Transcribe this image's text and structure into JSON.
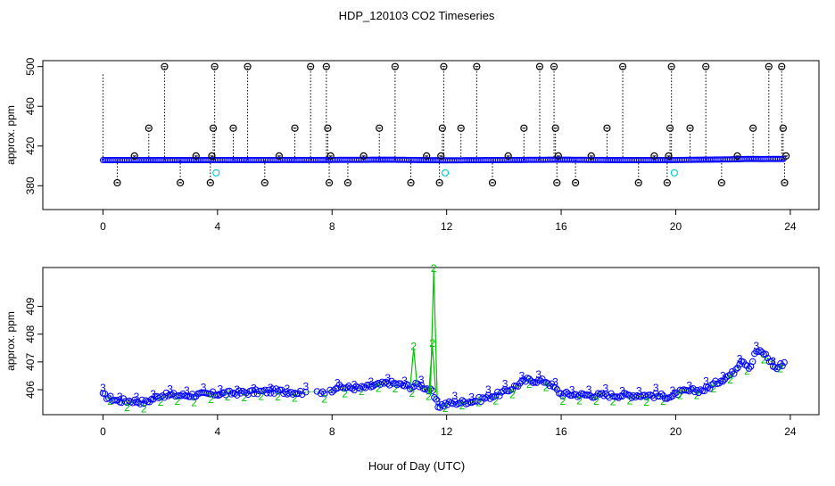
{
  "title": "HDP_120103  CO2 Timeseries",
  "xlabel": "Hour of Day (UTC)",
  "colors": {
    "background": "#ffffff",
    "axis": "#000000",
    "series3": "#0000ff",
    "series2": "#00c000",
    "outlier": "#000000",
    "spike": "#00d0d0"
  },
  "chart_data": [
    {
      "type": "scatter",
      "xlabel": "",
      "ylabel": "approx. ppm",
      "xlim": [
        -2.1,
        25
      ],
      "ylim": [
        356,
        506
      ],
      "xticks": [
        0,
        4,
        8,
        12,
        16,
        20,
        24
      ],
      "yticks": [
        380,
        420,
        460,
        500
      ],
      "series": [
        {
          "marker": "o",
          "color": "#0000ff",
          "base_value": 405.8,
          "x_range": [
            0,
            23.8
          ],
          "values_note_x": [
            0,
            2,
            4,
            6,
            8,
            10,
            12,
            14,
            16,
            18,
            20,
            22,
            22.5,
            23,
            23.8
          ],
          "values_note_y": [
            405.8,
            405.8,
            405.9,
            405.9,
            406.0,
            406.2,
            405.6,
            405.9,
            406.2,
            405.8,
            405.9,
            406.6,
            407.0,
            406.9,
            407.0
          ]
        },
        {
          "marker": "o",
          "color": "#000000",
          "points": [
            [
              0.5,
              383
            ],
            [
              1.1,
              410
            ],
            [
              1.6,
              438
            ],
            [
              2.15,
              500
            ],
            [
              2.7,
              383
            ],
            [
              3.25,
              410
            ],
            [
              3.75,
              383
            ],
            [
              3.8,
              410
            ],
            [
              3.85,
              438
            ],
            [
              3.9,
              500
            ],
            [
              4.55,
              438
            ],
            [
              5.05,
              500
            ],
            [
              5.65,
              383
            ],
            [
              6.15,
              410
            ],
            [
              6.7,
              438
            ],
            [
              7.25,
              500
            ],
            [
              7.8,
              500
            ],
            [
              7.85,
              438
            ],
            [
              7.9,
              383
            ],
            [
              7.95,
              410
            ],
            [
              8.55,
              383
            ],
            [
              9.1,
              410
            ],
            [
              9.65,
              438
            ],
            [
              10.2,
              500
            ],
            [
              10.75,
              383
            ],
            [
              11.3,
              410
            ],
            [
              11.75,
              383
            ],
            [
              11.8,
              410
            ],
            [
              11.85,
              438
            ],
            [
              11.9,
              500
            ],
            [
              12.5,
              438
            ],
            [
              13.05,
              500
            ],
            [
              13.6,
              383
            ],
            [
              14.15,
              410
            ],
            [
              14.7,
              438
            ],
            [
              15.25,
              500
            ],
            [
              15.75,
              500
            ],
            [
              15.8,
              438
            ],
            [
              15.85,
              383
            ],
            [
              15.9,
              410
            ],
            [
              16.5,
              383
            ],
            [
              17.05,
              410
            ],
            [
              17.6,
              438
            ],
            [
              18.15,
              500
            ],
            [
              18.7,
              383
            ],
            [
              19.25,
              410
            ],
            [
              19.7,
              383
            ],
            [
              19.75,
              410
            ],
            [
              19.8,
              438
            ],
            [
              19.85,
              500
            ],
            [
              20.5,
              438
            ],
            [
              21.05,
              500
            ],
            [
              21.6,
              383
            ],
            [
              22.15,
              410
            ],
            [
              22.7,
              438
            ],
            [
              23.25,
              500
            ],
            [
              23.7,
              500
            ],
            [
              23.75,
              438
            ],
            [
              23.8,
              383
            ],
            [
              23.85,
              410
            ]
          ]
        },
        {
          "marker": "o",
          "color": "#00d0d0",
          "points": [
            [
              3.95,
              393
            ],
            [
              11.95,
              393
            ],
            [
              19.95,
              393
            ]
          ]
        }
      ]
    },
    {
      "type": "scatter",
      "xlabel": "Hour of Day (UTC)",
      "ylabel": "approx. ppm",
      "xlim": [
        -2.1,
        25
      ],
      "ylim": [
        405.1,
        410.4
      ],
      "xticks": [
        0,
        4,
        8,
        12,
        16,
        20,
        24
      ],
      "yticks": [
        406,
        407,
        408,
        409
      ],
      "series": [
        {
          "marker": "3",
          "color": "#0000ff",
          "knots_x": [
            0,
            0.5,
            1,
            1.5,
            2,
            3,
            4,
            5,
            6,
            7,
            7.9,
            8.1,
            9,
            10,
            10.8,
            11.0,
            11.3,
            11.5,
            11.7,
            12,
            13,
            14,
            14.8,
            15.5,
            16,
            17,
            18,
            19,
            19.9,
            20.1,
            21,
            21.5,
            22,
            22.3,
            22.6,
            22.8,
            23.1,
            23.5,
            23.8
          ],
          "knots_y": [
            405.8,
            405.6,
            405.6,
            405.55,
            405.8,
            405.8,
            405.85,
            405.9,
            405.95,
            405.9,
            405.9,
            406.1,
            406.05,
            406.25,
            406.1,
            406.2,
            406.05,
            405.9,
            405.4,
            405.5,
            405.6,
            405.9,
            406.35,
            406.3,
            405.85,
            405.8,
            405.8,
            405.8,
            405.75,
            405.9,
            406.0,
            406.3,
            406.6,
            407.1,
            406.8,
            407.4,
            407.3,
            406.75,
            407.0
          ]
        },
        {
          "marker": "2",
          "color": "#00c000",
          "spikes": [
            [
              10.85,
              407.5
            ],
            [
              11.55,
              410.3
            ],
            [
              11.5,
              407.6
            ]
          ]
        }
      ]
    }
  ]
}
